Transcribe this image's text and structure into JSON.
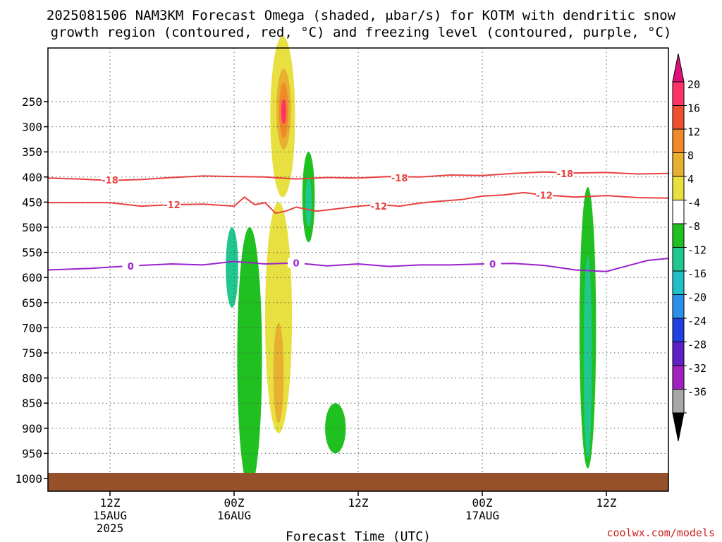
{
  "title_line1": "2025081506 NAM3KM Forecast Omega (shaded, μbar/s) for KOTM with dendritic snow",
  "title_line2": "growth region (contoured, red, °C) and freezing level (contoured, purple, °C)",
  "credit": "coolwx.com/models",
  "chart_data": {
    "type": "heatmap",
    "xlabel": "Forecast Time (UTC)",
    "x_ticks": [
      {
        "hour": 6,
        "label": "12Z",
        "sub1": "15AUG",
        "sub2": "2025"
      },
      {
        "hour": 18,
        "label": "00Z",
        "sub1": "16AUG",
        "sub2": ""
      },
      {
        "hour": 30,
        "label": "12Z",
        "sub1": "",
        "sub2": ""
      },
      {
        "hour": 42,
        "label": "00Z",
        "sub1": "17AUG",
        "sub2": ""
      },
      {
        "hour": 54,
        "label": "12Z",
        "sub1": "",
        "sub2": ""
      }
    ],
    "xlim": [
      0,
      60
    ],
    "y_ticks": [
      250,
      300,
      350,
      400,
      450,
      500,
      550,
      600,
      650,
      700,
      750,
      800,
      850,
      900,
      950,
      1000
    ],
    "ylim": [
      1000,
      200
    ],
    "colorbar": {
      "labels": [
        "20",
        "16",
        "12",
        "8",
        "4",
        "-4",
        "-8",
        "-12",
        "-16",
        "-20",
        "-24",
        "-28",
        "-32",
        "-36"
      ],
      "colors": [
        "#ff3366",
        "#f05030",
        "#f08a28",
        "#e8b030",
        "#e8e040",
        "#ffffff",
        "#20c020",
        "#20c890",
        "#20c0c8",
        "#2a90e8",
        "#2040e0",
        "#6020c8",
        "#a020c0",
        "#a8a8a8",
        "#000000"
      ]
    },
    "contours": [
      {
        "name": "-18",
        "color": "#e84040",
        "points": [
          [
            0,
            402
          ],
          [
            3,
            404
          ],
          [
            6,
            407
          ],
          [
            9,
            405
          ],
          [
            12,
            401
          ],
          [
            15,
            398
          ],
          [
            18,
            399
          ],
          [
            21,
            400
          ],
          [
            24,
            404
          ],
          [
            27,
            401
          ],
          [
            30,
            402
          ],
          [
            33,
            399
          ],
          [
            36,
            400
          ],
          [
            39,
            396
          ],
          [
            42,
            397
          ],
          [
            45,
            393
          ],
          [
            48,
            390
          ],
          [
            51,
            392
          ],
          [
            54,
            391
          ],
          [
            57,
            394
          ],
          [
            60,
            393
          ]
        ],
        "labels": [
          {
            "x": 6,
            "y": 406
          },
          {
            "x": 34,
            "y": 402
          },
          {
            "x": 50,
            "y": 393
          }
        ]
      },
      {
        "name": "-12",
        "color": "#e84040",
        "points": [
          [
            0,
            451
          ],
          [
            3,
            451
          ],
          [
            6,
            451
          ],
          [
            9,
            458
          ],
          [
            12,
            455
          ],
          [
            15,
            454
          ],
          [
            18,
            458
          ],
          [
            19,
            440
          ],
          [
            20,
            455
          ],
          [
            21,
            451
          ],
          [
            22,
            472
          ],
          [
            23,
            468
          ],
          [
            24,
            460
          ],
          [
            26,
            468
          ],
          [
            28,
            463
          ],
          [
            30,
            458
          ],
          [
            32,
            455
          ],
          [
            34,
            458
          ],
          [
            36,
            452
          ],
          [
            38,
            448
          ],
          [
            40,
            445
          ],
          [
            42,
            438
          ],
          [
            44,
            436
          ],
          [
            46,
            431
          ],
          [
            48,
            436
          ],
          [
            51,
            440
          ],
          [
            54,
            437
          ],
          [
            57,
            441
          ],
          [
            60,
            442
          ]
        ],
        "labels": [
          {
            "x": 12,
            "y": 455
          },
          {
            "x": 32,
            "y": 458
          },
          {
            "x": 48,
            "y": 436
          }
        ]
      },
      {
        "name": "0",
        "color": "#9922cc",
        "points": [
          [
            0,
            585
          ],
          [
            4,
            582
          ],
          [
            8,
            577
          ],
          [
            12,
            573
          ],
          [
            15,
            575
          ],
          [
            18,
            568
          ],
          [
            21,
            573
          ],
          [
            24,
            571
          ],
          [
            27,
            577
          ],
          [
            30,
            573
          ],
          [
            33,
            578
          ],
          [
            36,
            575
          ],
          [
            39,
            575
          ],
          [
            42,
            573
          ],
          [
            45,
            572
          ],
          [
            48,
            576
          ],
          [
            51,
            585
          ],
          [
            54,
            588
          ],
          [
            56,
            577
          ],
          [
            58,
            566
          ],
          [
            60,
            562
          ]
        ],
        "labels": [
          {
            "x": 8,
            "y": 577
          },
          {
            "x": 24,
            "y": 571
          },
          {
            "x": 43,
            "y": 573
          }
        ]
      }
    ],
    "shaded_regions": [
      {
        "value": "4 to 8",
        "color": "#e8e040",
        "cx": 22.7,
        "p": 280,
        "rx": 1.2,
        "rp": 160
      },
      {
        "value": "8 to 12",
        "color": "#e8b030",
        "cx": 22.8,
        "p": 265,
        "rx": 0.7,
        "rp": 80
      },
      {
        "value": "12 to 16",
        "color": "#f08a28",
        "cx": 22.8,
        "p": 268,
        "rx": 0.45,
        "rp": 55
      },
      {
        "value": "16 to 20",
        "color": "#ff3366",
        "cx": 22.8,
        "p": 270,
        "rx": 0.25,
        "rp": 25
      },
      {
        "value": "-4 to -8",
        "color": "#20c020",
        "cx": 25.2,
        "p": 440,
        "rx": 0.6,
        "rp": 90
      },
      {
        "value": "-8 to -12",
        "color": "#20c890",
        "cx": 25.2,
        "p": 450,
        "rx": 0.3,
        "rp": 50
      },
      {
        "value": "-4 to -8",
        "color": "#20c020",
        "cx": 19.5,
        "p": 760,
        "rx": 1.2,
        "rp": 260
      },
      {
        "value": "-8 to -12",
        "color": "#20c890",
        "cx": 17.8,
        "p": 580,
        "rx": 0.6,
        "rp": 80
      },
      {
        "value": "-4 to -8",
        "color": "#20c020",
        "cx": 52.2,
        "p": 700,
        "rx": 0.8,
        "rp": 280
      },
      {
        "value": "-8 to -12",
        "color": "#20c890",
        "cx": 52.2,
        "p": 760,
        "rx": 0.4,
        "rp": 200
      },
      {
        "value": "4 to 8",
        "color": "#e8e040",
        "cx": 22.3,
        "p": 680,
        "rx": 1.3,
        "rp": 230
      },
      {
        "value": "8 to 12",
        "color": "#e8b030",
        "cx": 22.3,
        "p": 790,
        "rx": 0.5,
        "rp": 100
      },
      {
        "value": "-4 to -8",
        "color": "#20c020",
        "cx": 27.8,
        "p": 900,
        "rx": 1.0,
        "rp": 50
      }
    ]
  }
}
